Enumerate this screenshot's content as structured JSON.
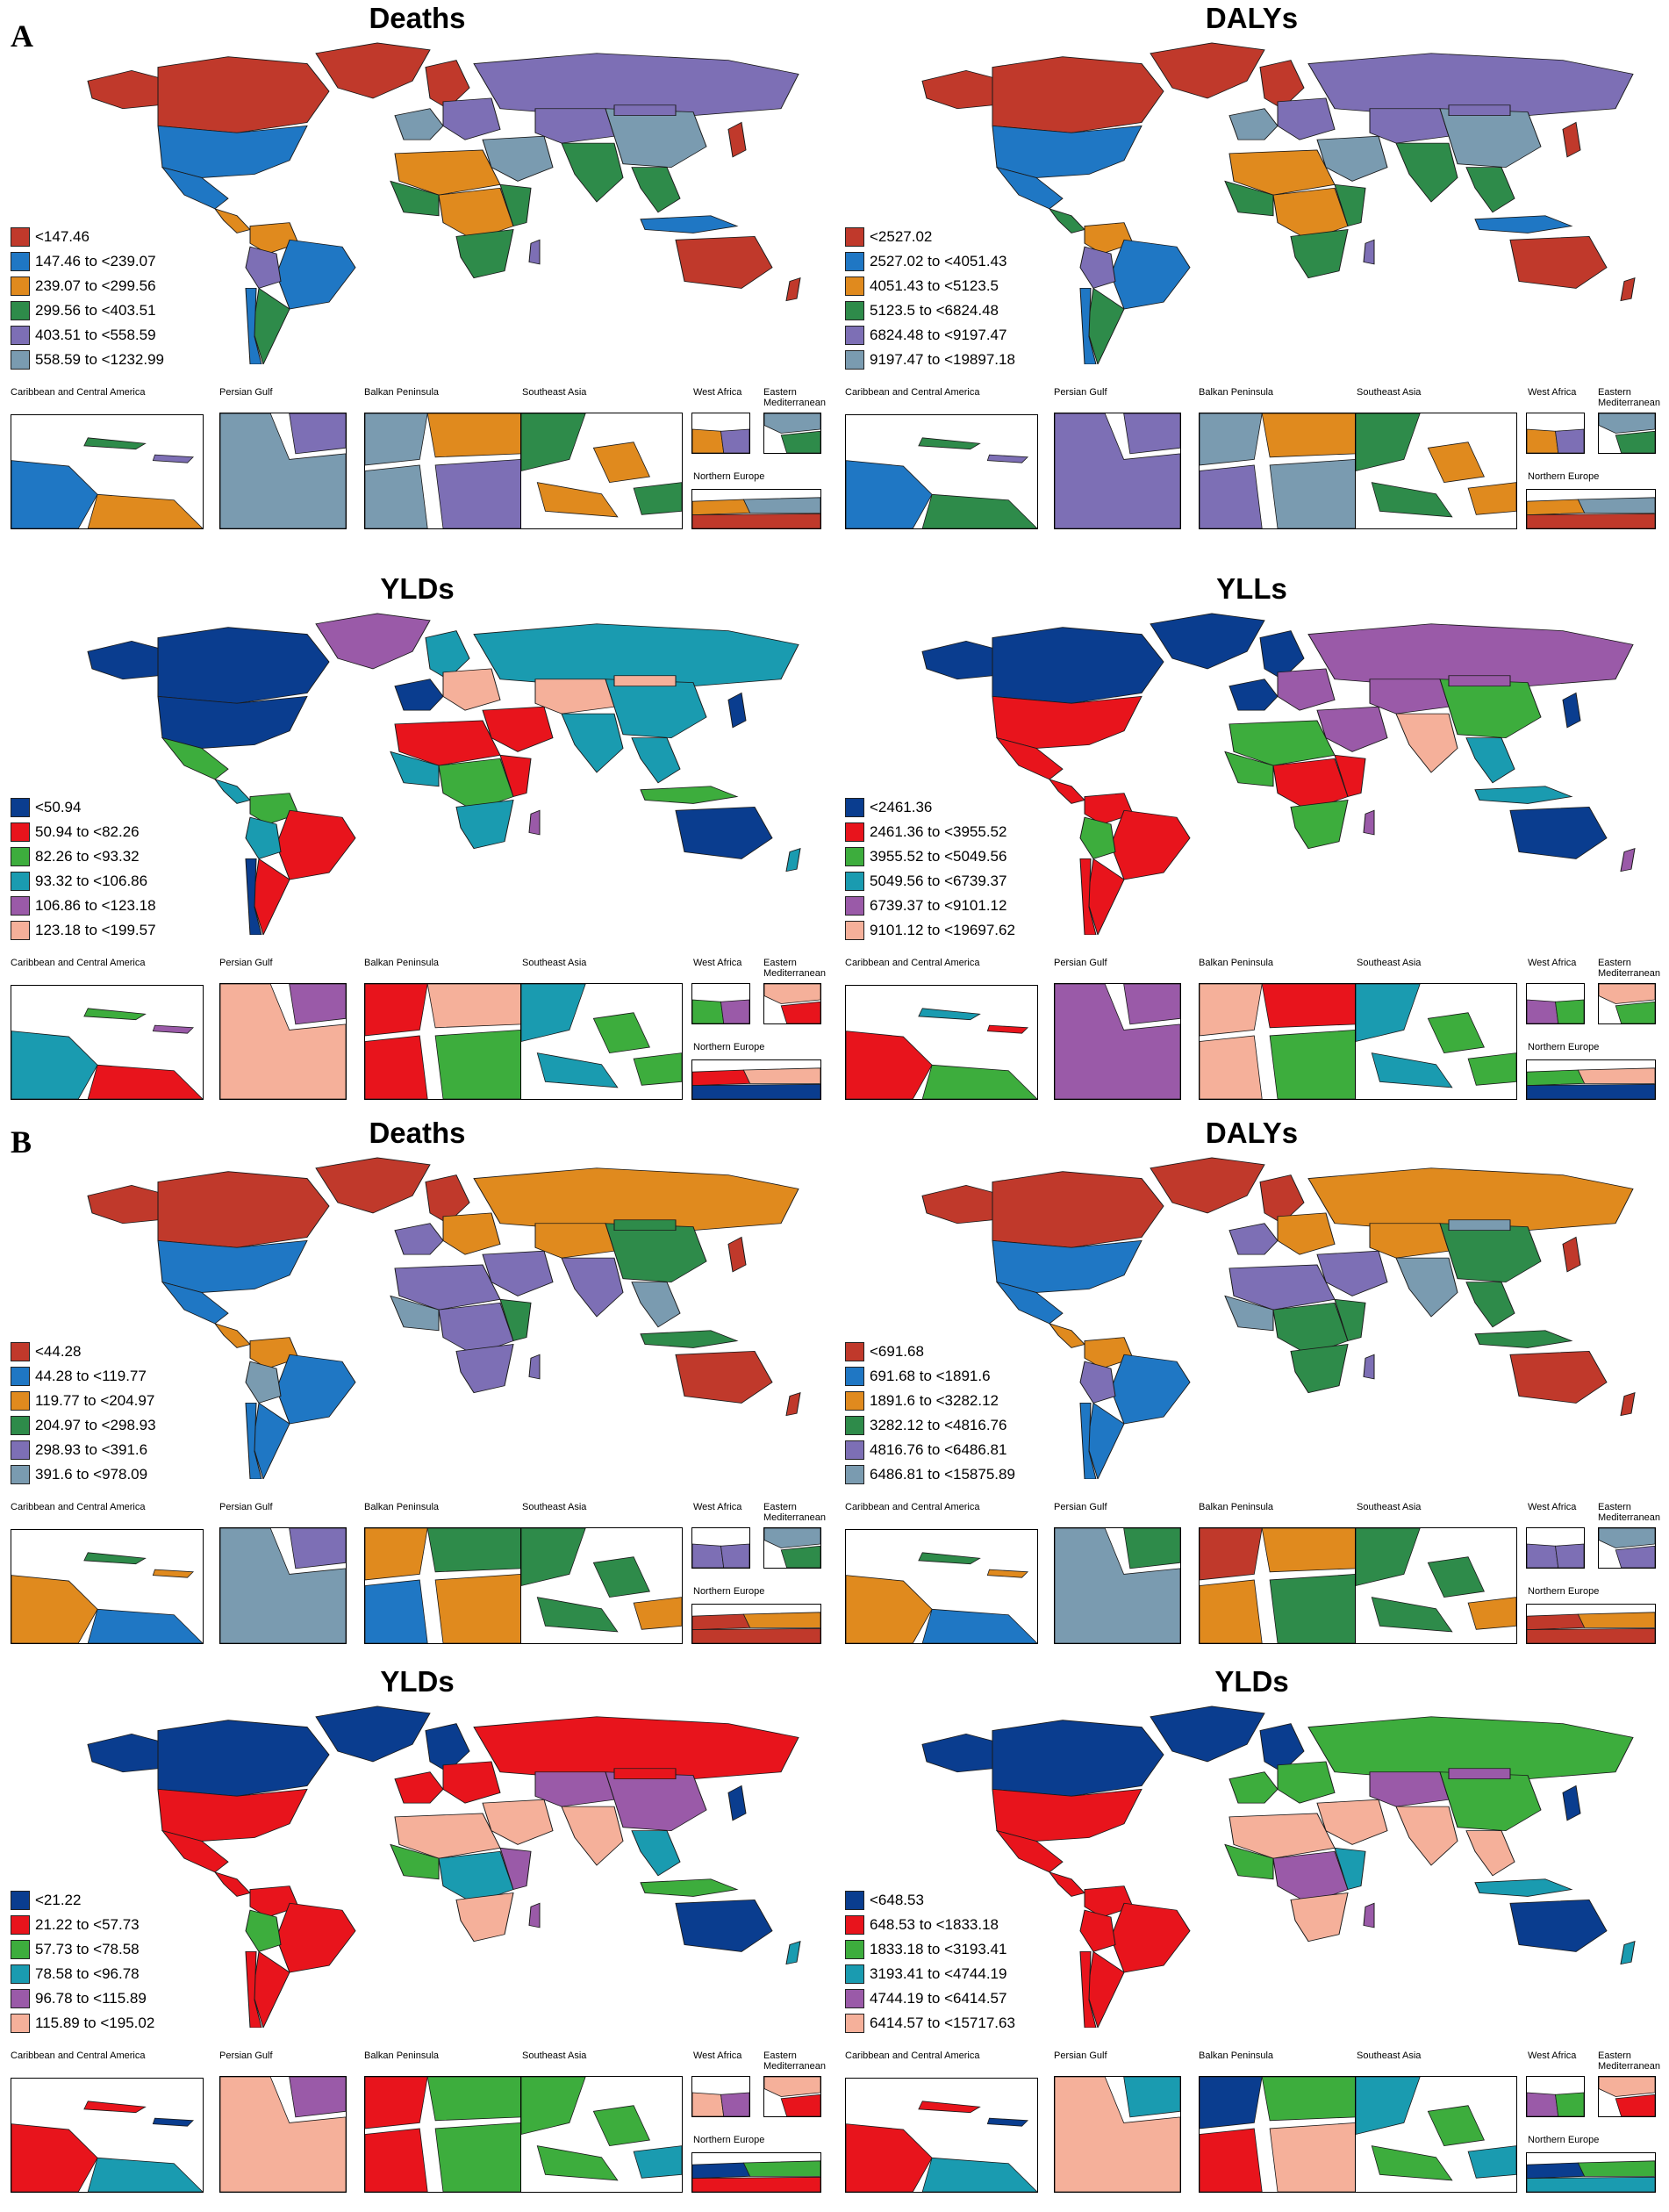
{
  "section_labels": [
    "A",
    "B"
  ],
  "inset_labels": {
    "caribbean": "Caribbean and Central America",
    "persian": "Persian Gulf",
    "balkan": "Balkan Peninsula",
    "seasia": "Southeast Asia",
    "westafrica": "West Africa",
    "eastmed": "Eastern Mediterranean",
    "northeu": "Northern Europe"
  },
  "palettes": {
    "muted": [
      "#c0392b",
      "#1f77c4",
      "#e08a1e",
      "#2e8b4a",
      "#7d6fb5",
      "#7a9bb0"
    ],
    "bright": [
      "#0a3d8f",
      "#e8141c",
      "#3dad3d",
      "#1a9bb0",
      "#9a5aa8",
      "#f5b09a"
    ]
  },
  "panels": [
    {
      "title": "Deaths",
      "palette": "muted",
      "legend": [
        "<147.46",
        "147.46 to <239.07",
        "239.07 to <299.56",
        "299.56 to <403.51",
        "403.51 to <558.59",
        "558.59 to <1232.99"
      ]
    },
    {
      "title": "DALYs",
      "palette": "muted",
      "legend": [
        "<2527.02",
        "2527.02 to <4051.43",
        "4051.43 to <5123.5",
        "5123.5 to <6824.48",
        "6824.48 to <9197.47",
        "9197.47 to <19897.18"
      ]
    },
    {
      "title": "YLDs",
      "palette": "bright",
      "legend": [
        "<50.94",
        "50.94 to <82.26",
        "82.26 to <93.32",
        "93.32 to <106.86",
        "106.86 to <123.18",
        "123.18 to <199.57"
      ]
    },
    {
      "title": "YLLs",
      "palette": "bright",
      "legend": [
        "<2461.36",
        "2461.36 to <3955.52",
        "3955.52 to <5049.56",
        "5049.56 to <6739.37",
        "6739.37 to <9101.12",
        "9101.12 to <19697.62"
      ]
    },
    {
      "title": "Deaths",
      "palette": "muted",
      "legend": [
        "<44.28",
        "44.28 to <119.77",
        "119.77 to <204.97",
        "204.97 to <298.93",
        "298.93 to <391.6",
        "391.6 to <978.09"
      ]
    },
    {
      "title": "DALYs",
      "palette": "muted",
      "legend": [
        "<691.68",
        "691.68 to <1891.6",
        "1891.6 to <3282.12",
        "3282.12 to <4816.76",
        "4816.76 to <6486.81",
        "6486.81 to <15875.89"
      ]
    },
    {
      "title": "YLDs",
      "palette": "bright",
      "legend": [
        "<21.22",
        "21.22 to <57.73",
        "57.73 to <78.58",
        "78.58 to <96.78",
        "96.78 to <115.89",
        "115.89 to <195.02"
      ]
    },
    {
      "title": "YLDs",
      "palette": "bright",
      "legend": [
        "<648.53",
        "648.53 to <1833.18",
        "1833.18 to <3193.41",
        "3193.41 to <4744.19",
        "4744.19 to <6414.57",
        "6414.57 to <15717.63"
      ]
    }
  ]
}
